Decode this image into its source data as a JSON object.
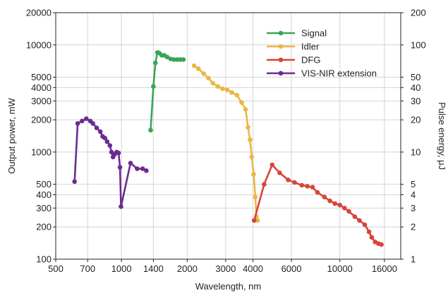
{
  "chart_data": {
    "type": "line",
    "xscale": "log",
    "yscale": "log",
    "xlabel": "Wavelength, nm",
    "ylabel": "Output power, mW",
    "y2label": "Pulse energy, μJ",
    "xlim": [
      500,
      19000
    ],
    "ylim": [
      100,
      20000
    ],
    "y2lim": [
      1,
      200
    ],
    "grid": true,
    "legend_position": "top-right",
    "x_ticks": [
      {
        "value": 500,
        "label": "500"
      },
      {
        "value": 700,
        "label": "700"
      },
      {
        "value": 1000,
        "label": "1000"
      },
      {
        "value": 1400,
        "label": "1400"
      },
      {
        "value": 2000,
        "label": "2000"
      },
      {
        "value": 3000,
        "label": "3000"
      },
      {
        "value": 4000,
        "label": "4000"
      },
      {
        "value": 6000,
        "label": "6000"
      },
      {
        "value": 10000,
        "label": "10000"
      },
      {
        "value": 16000,
        "label": "16000"
      }
    ],
    "y_ticks": [
      {
        "value": 100,
        "label": "100"
      },
      {
        "value": 200,
        "label": "200"
      },
      {
        "value": 300,
        "label": "300"
      },
      {
        "value": 400,
        "label": "400"
      },
      {
        "value": 500,
        "label": "500"
      },
      {
        "value": 1000,
        "label": "1000"
      },
      {
        "value": 2000,
        "label": "2000"
      },
      {
        "value": 3000,
        "label": "3000"
      },
      {
        "value": 4000,
        "label": "4000"
      },
      {
        "value": 5000,
        "label": "5000"
      },
      {
        "value": 10000,
        "label": "10000"
      },
      {
        "value": 20000,
        "label": "20000"
      }
    ],
    "y2_ticks": [
      {
        "value": 1,
        "label": "1"
      },
      {
        "value": 2,
        "label": "2"
      },
      {
        "value": 3,
        "label": "3"
      },
      {
        "value": 4,
        "label": "4"
      },
      {
        "value": 5,
        "label": "5"
      },
      {
        "value": 10,
        "label": "10"
      },
      {
        "value": 20,
        "label": "20"
      },
      {
        "value": 30,
        "label": "30"
      },
      {
        "value": 40,
        "label": "40"
      },
      {
        "value": 50,
        "label": "50"
      },
      {
        "value": 100,
        "label": "100"
      },
      {
        "value": 200,
        "label": "200"
      }
    ],
    "series": [
      {
        "name": "Signal",
        "color": "#3aa655",
        "points": [
          [
            1360,
            1600
          ],
          [
            1400,
            4100
          ],
          [
            1430,
            6800
          ],
          [
            1460,
            8500
          ],
          [
            1490,
            8400
          ],
          [
            1530,
            8000
          ],
          [
            1570,
            8000
          ],
          [
            1620,
            7700
          ],
          [
            1680,
            7400
          ],
          [
            1740,
            7300
          ],
          [
            1800,
            7300
          ],
          [
            1860,
            7300
          ],
          [
            1920,
            7300
          ]
        ]
      },
      {
        "name": "Idler",
        "color": "#e8b843",
        "points": [
          [
            2150,
            6400
          ],
          [
            2250,
            6000
          ],
          [
            2380,
            5400
          ],
          [
            2500,
            4900
          ],
          [
            2620,
            4400
          ],
          [
            2760,
            4100
          ],
          [
            2900,
            3900
          ],
          [
            3050,
            3800
          ],
          [
            3200,
            3600
          ],
          [
            3380,
            3400
          ],
          [
            3550,
            2900
          ],
          [
            3700,
            2500
          ],
          [
            3800,
            1700
          ],
          [
            3880,
            1300
          ],
          [
            3950,
            900
          ],
          [
            4030,
            620
          ],
          [
            4100,
            380
          ],
          [
            4150,
            250
          ],
          [
            4200,
            230
          ]
        ]
      },
      {
        "name": "DFG",
        "color": "#d9443a",
        "points": [
          [
            4050,
            230
          ],
          [
            4500,
            500
          ],
          [
            4900,
            760
          ],
          [
            5300,
            640
          ],
          [
            5800,
            550
          ],
          [
            6200,
            520
          ],
          [
            6700,
            490
          ],
          [
            7100,
            480
          ],
          [
            7500,
            470
          ],
          [
            7900,
            420
          ],
          [
            8500,
            380
          ],
          [
            9000,
            350
          ],
          [
            9500,
            330
          ],
          [
            10000,
            320
          ],
          [
            10500,
            300
          ],
          [
            11000,
            280
          ],
          [
            11700,
            250
          ],
          [
            12300,
            230
          ],
          [
            13000,
            210
          ],
          [
            13600,
            180
          ],
          [
            14000,
            160
          ],
          [
            14500,
            145
          ],
          [
            15000,
            140
          ],
          [
            15500,
            137
          ]
        ]
      },
      {
        "name": "VIS-NIR extension",
        "color": "#6b2c91",
        "points": [
          [
            610,
            530
          ],
          [
            630,
            1850
          ],
          [
            660,
            1950
          ],
          [
            690,
            2050
          ],
          [
            720,
            1950
          ],
          [
            740,
            1850
          ],
          [
            770,
            1680
          ],
          [
            800,
            1550
          ],
          [
            820,
            1400
          ],
          [
            840,
            1350
          ],
          [
            860,
            1250
          ],
          [
            885,
            1150
          ],
          [
            900,
            1000
          ],
          [
            915,
            900
          ],
          [
            930,
            950
          ],
          [
            950,
            1000
          ],
          [
            970,
            980
          ],
          [
            985,
            720
          ],
          [
            995,
            310
          ],
          [
            1100,
            790
          ],
          [
            1180,
            700
          ],
          [
            1250,
            700
          ],
          [
            1300,
            670
          ]
        ]
      }
    ]
  }
}
